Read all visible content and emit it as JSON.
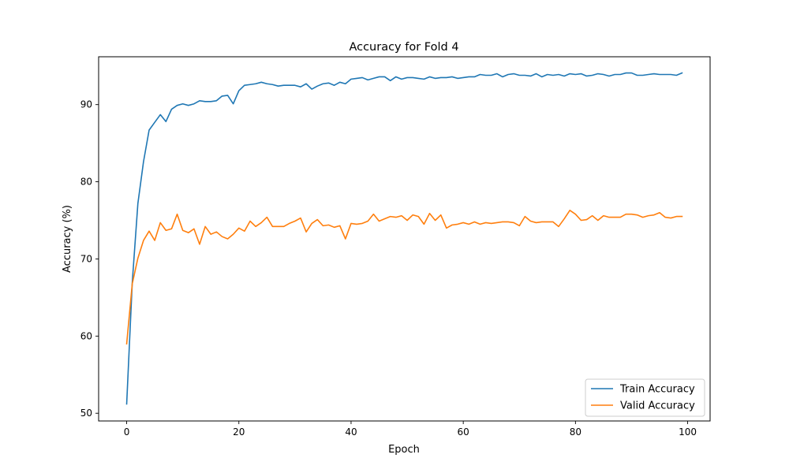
{
  "chart_data": {
    "type": "line",
    "title": "Accuracy for Fold 4",
    "xlabel": "Epoch",
    "ylabel": "Accuracy (%)",
    "xlim": [
      -5,
      104
    ],
    "ylim": [
      49,
      96.2
    ],
    "xticks": [
      0,
      20,
      40,
      60,
      80,
      100
    ],
    "yticks": [
      50,
      60,
      70,
      80,
      90
    ],
    "grid": false,
    "legend_position": "bottom-right",
    "x": [
      0,
      1,
      2,
      3,
      4,
      5,
      6,
      7,
      8,
      9,
      10,
      11,
      12,
      13,
      14,
      15,
      16,
      17,
      18,
      19,
      20,
      21,
      22,
      23,
      24,
      25,
      26,
      27,
      28,
      29,
      30,
      31,
      32,
      33,
      34,
      35,
      36,
      37,
      38,
      39,
      40,
      41,
      42,
      43,
      44,
      45,
      46,
      47,
      48,
      49,
      50,
      51,
      52,
      53,
      54,
      55,
      56,
      57,
      58,
      59,
      60,
      61,
      62,
      63,
      64,
      65,
      66,
      67,
      68,
      69,
      70,
      71,
      72,
      73,
      74,
      75,
      76,
      77,
      78,
      79,
      80,
      81,
      82,
      83,
      84,
      85,
      86,
      87,
      88,
      89,
      90,
      91,
      92,
      93,
      94,
      95,
      96,
      97,
      98,
      99
    ],
    "series": [
      {
        "name": "Train Accuracy",
        "color": "#1f77b4",
        "values": [
          51.2,
          67.0,
          77.2,
          82.6,
          86.7,
          87.7,
          88.7,
          87.8,
          89.4,
          89.9,
          90.1,
          89.9,
          90.1,
          90.5,
          90.4,
          90.4,
          90.5,
          91.1,
          91.2,
          90.1,
          91.8,
          92.5,
          92.6,
          92.7,
          92.9,
          92.7,
          92.6,
          92.4,
          92.5,
          92.5,
          92.5,
          92.3,
          92.7,
          92.0,
          92.4,
          92.7,
          92.8,
          92.5,
          92.9,
          92.7,
          93.3,
          93.4,
          93.5,
          93.2,
          93.4,
          93.6,
          93.6,
          93.1,
          93.6,
          93.3,
          93.5,
          93.5,
          93.4,
          93.3,
          93.6,
          93.4,
          93.5,
          93.5,
          93.6,
          93.4,
          93.5,
          93.6,
          93.6,
          93.9,
          93.8,
          93.8,
          94.0,
          93.6,
          93.9,
          94.0,
          93.8,
          93.8,
          93.7,
          94.0,
          93.6,
          93.9,
          93.8,
          93.9,
          93.7,
          94.0,
          93.9,
          94.0,
          93.7,
          93.8,
          94.0,
          93.9,
          93.7,
          93.9,
          93.9,
          94.1,
          94.1,
          93.8,
          93.8,
          93.9,
          94.0,
          93.9,
          93.9,
          93.9,
          93.8,
          94.1
        ]
      },
      {
        "name": "Valid Accuracy",
        "color": "#ff7f0e",
        "values": [
          59.0,
          66.8,
          70.1,
          72.4,
          73.6,
          72.4,
          74.7,
          73.7,
          73.9,
          75.8,
          73.7,
          73.4,
          73.9,
          71.9,
          74.2,
          73.2,
          73.5,
          72.9,
          72.6,
          73.2,
          74.0,
          73.6,
          74.9,
          74.2,
          74.7,
          75.4,
          74.2,
          74.2,
          74.2,
          74.6,
          74.9,
          75.3,
          73.5,
          74.6,
          75.1,
          74.3,
          74.4,
          74.1,
          74.3,
          72.6,
          74.6,
          74.5,
          74.6,
          74.9,
          75.8,
          74.9,
          75.2,
          75.5,
          75.4,
          75.6,
          75.0,
          75.7,
          75.5,
          74.5,
          75.9,
          75.0,
          75.7,
          74.0,
          74.4,
          74.5,
          74.7,
          74.5,
          74.8,
          74.5,
          74.7,
          74.6,
          74.7,
          74.8,
          74.8,
          74.7,
          74.3,
          75.5,
          74.9,
          74.7,
          74.8,
          74.8,
          74.8,
          74.2,
          75.2,
          76.3,
          75.8,
          75.0,
          75.1,
          75.6,
          75.0,
          75.6,
          75.4,
          75.4,
          75.4,
          75.8,
          75.8,
          75.7,
          75.4,
          75.6,
          75.7,
          76.0,
          75.4,
          75.3,
          75.5,
          75.5
        ]
      }
    ]
  }
}
